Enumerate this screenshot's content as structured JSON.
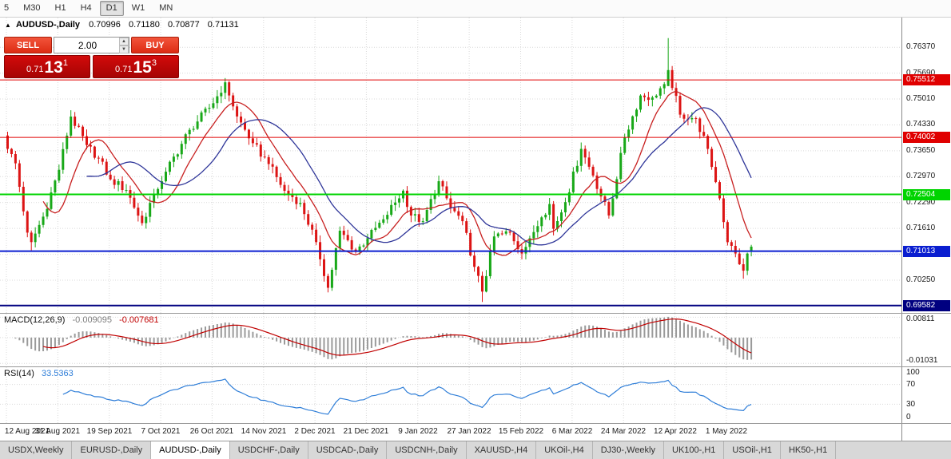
{
  "toolbar": {
    "periods": [
      {
        "label": "5",
        "active": false
      },
      {
        "label": "M30",
        "active": false
      },
      {
        "label": "H1",
        "active": false
      },
      {
        "label": "H4",
        "active": false
      },
      {
        "label": "D1",
        "active": true
      },
      {
        "label": "W1",
        "active": false
      },
      {
        "label": "MN",
        "active": false
      }
    ]
  },
  "chart_header": {
    "marker": "▲",
    "symbol": "AUDUSD-,Daily",
    "open": "0.70996",
    "high": "0.71180",
    "low": "0.70877",
    "close": "0.71131"
  },
  "trade_panel": {
    "sell_label": "SELL",
    "buy_label": "BUY",
    "volume": "2.00",
    "bid_prefix": "0.71",
    "bid_big": "13",
    "bid_sup": "1",
    "ask_prefix": "0.71",
    "ask_big": "15",
    "ask_sup": "3"
  },
  "macd_panel": {
    "label": "MACD(12,26,9)",
    "main_value": "-0.009095",
    "signal_value": "-0.007681",
    "axis_top": "0.00811",
    "axis_bottom": "-0.01031"
  },
  "rsi_panel": {
    "label": "RSI(14)",
    "value": "33.5363",
    "axis": [
      "100",
      "70",
      "30",
      "0"
    ]
  },
  "tabs": [
    {
      "label": "USDX,Weekly",
      "active": false
    },
    {
      "label": "EURUSD-,Daily",
      "active": false
    },
    {
      "label": "AUDUSD-,Daily",
      "active": true
    },
    {
      "label": "USDCHF-,Daily",
      "active": false
    },
    {
      "label": "USDCAD-,Daily",
      "active": false
    },
    {
      "label": "USDCNH-,Daily",
      "active": false
    },
    {
      "label": "XAUUSD-,H4",
      "active": false
    },
    {
      "label": "UKOil-,H4",
      "active": false
    },
    {
      "label": "DJ30-,Weekly",
      "active": false
    },
    {
      "label": "UK100-,H1",
      "active": false
    },
    {
      "label": "USOil-,H1",
      "active": false
    },
    {
      "label": "HK50-,H1",
      "active": false
    }
  ],
  "colors": {
    "bull": "#18a818",
    "bear": "#dc1414",
    "ma_fast": "#c82020",
    "ma_slow": "#2f3699",
    "macd_hist": "#9a9a9a",
    "macd_signal": "#c00000",
    "rsi": "#2f7ed8",
    "grid": "#d9d9d9"
  },
  "chart_data": {
    "type": "candlestick",
    "symbol": "AUDUSD",
    "timeframe": "Daily",
    "x_labels": [
      "12 Aug 2021",
      "31 Aug 2021",
      "19 Sep 2021",
      "7 Oct 2021",
      "26 Oct 2021",
      "14 Nov 2021",
      "2 Dec 2021",
      "21 Dec 2021",
      "9 Jan 2022",
      "27 Jan 2022",
      "15 Feb 2022",
      "6 Mar 2022",
      "24 Mar 2022",
      "12 Apr 2022",
      "1 May 2022"
    ],
    "candles_per_label": 13,
    "candle_count": 189,
    "price_ticks": [
      "0.76370",
      "0.75690",
      "0.75010",
      "0.74330",
      "0.73650",
      "0.72970",
      "0.72290",
      "0.71610",
      "0.70930",
      "0.70250"
    ],
    "price_range": {
      "top": 0.7715,
      "bottom": 0.6939
    },
    "levels": [
      {
        "price": 0.75512,
        "label": "0.75512",
        "color": "#e00000",
        "width": 1
      },
      {
        "price": 0.74002,
        "label": "0.74002",
        "color": "#e00000",
        "width": 1
      },
      {
        "price": 0.72504,
        "label": "0.72504",
        "color": "#00d400",
        "width": 2
      },
      {
        "price": 0.71013,
        "label": "0.71013",
        "color": "#0a1ed0",
        "width": 2
      },
      {
        "price": 0.69582,
        "label": "0.69582",
        "color": "#000080",
        "width": 2
      }
    ],
    "anchors": [
      [
        0,
        0.737
      ],
      [
        2,
        0.7332
      ],
      [
        5,
        0.715
      ],
      [
        6,
        0.7125
      ],
      [
        9,
        0.7192
      ],
      [
        13,
        0.7315
      ],
      [
        16,
        0.7455
      ],
      [
        20,
        0.738
      ],
      [
        23,
        0.7345
      ],
      [
        26,
        0.729
      ],
      [
        30,
        0.7262
      ],
      [
        34,
        0.7175
      ],
      [
        37,
        0.725
      ],
      [
        40,
        0.731
      ],
      [
        46,
        0.742
      ],
      [
        52,
        0.749
      ],
      [
        55,
        0.7545
      ],
      [
        58,
        0.7455
      ],
      [
        62,
        0.7385
      ],
      [
        66,
        0.733
      ],
      [
        70,
        0.726
      ],
      [
        74,
        0.7228
      ],
      [
        78,
        0.7125
      ],
      [
        81,
        0.7005
      ],
      [
        84,
        0.7155
      ],
      [
        88,
        0.71
      ],
      [
        91,
        0.7135
      ],
      [
        95,
        0.7185
      ],
      [
        100,
        0.726
      ],
      [
        102,
        0.7195
      ],
      [
        105,
        0.718
      ],
      [
        109,
        0.7285
      ],
      [
        112,
        0.7215
      ],
      [
        115,
        0.718
      ],
      [
        118,
        0.706
      ],
      [
        120,
        0.6995
      ],
      [
        123,
        0.714
      ],
      [
        127,
        0.715
      ],
      [
        130,
        0.7095
      ],
      [
        132,
        0.7135
      ],
      [
        135,
        0.719
      ],
      [
        137,
        0.7225
      ],
      [
        138,
        0.716
      ],
      [
        141,
        0.723
      ],
      [
        145,
        0.737
      ],
      [
        148,
        0.73
      ],
      [
        152,
        0.7195
      ],
      [
        156,
        0.74
      ],
      [
        160,
        0.751
      ],
      [
        163,
        0.7505
      ],
      [
        166,
        0.754
      ],
      [
        167,
        0.7577
      ],
      [
        170,
        0.746
      ],
      [
        174,
        0.745
      ],
      [
        177,
        0.737
      ],
      [
        180,
        0.724
      ],
      [
        182,
        0.7125
      ],
      [
        184,
        0.7095
      ],
      [
        186,
        0.705
      ],
      [
        187,
        0.7095
      ],
      [
        188,
        0.7113
      ]
    ],
    "overrides": [
      {
        "i": 6,
        "l": 0.7103
      },
      {
        "i": 55,
        "h": 0.7556
      },
      {
        "i": 81,
        "l": 0.6993
      },
      {
        "i": 120,
        "l": 0.6968
      },
      {
        "i": 167,
        "o": 0.7535,
        "h": 0.7661
      },
      {
        "i": 186,
        "l": 0.7029
      },
      {
        "i": 188,
        "o": 0.70996,
        "h": 0.7118,
        "l": 0.70877,
        "c": 0.71131
      }
    ],
    "ma_fast_period": 10,
    "ma_slow_period": 21,
    "macd": {
      "fast": 12,
      "slow": 26,
      "signal": 9,
      "range": [
        -0.0115,
        0.0095
      ],
      "grid_levels": [
        0.00811,
        0,
        -0.01031
      ]
    },
    "rsi": {
      "period": 14,
      "levels": [
        30,
        70
      ]
    }
  }
}
